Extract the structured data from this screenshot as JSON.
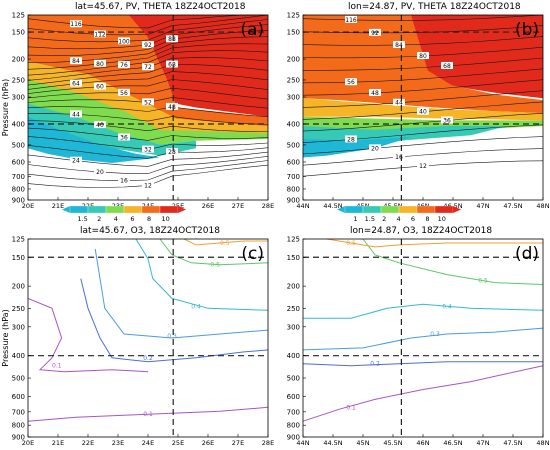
{
  "chart_data": [
    {
      "id": "a",
      "type": "contour",
      "panel_label": "(a)",
      "title": "lat=45.67, PV, THETA 18Z24OCT2018",
      "ylabel": "Pressure (hPa)",
      "y_ticks": [
        125,
        150,
        200,
        250,
        300,
        400,
        500,
        600,
        700,
        800,
        900
      ],
      "x_ticks": [
        "20E",
        "21E",
        "22E",
        "23E",
        "24E",
        "25E",
        "26E",
        "27E",
        "28E"
      ],
      "fill_field": "PV",
      "colorbar_levels": [
        "1.5",
        "2",
        "4",
        "6",
        "8",
        "10"
      ],
      "colorbar_colors": [
        "#1fb7d6",
        "#36c9b6",
        "#7fdc4f",
        "#f6b526",
        "#f36a1b",
        "#e12a1c"
      ],
      "reference_lines": {
        "vertical": "25E",
        "horizontal_pressure": [
          150,
          400
        ]
      },
      "theta_labels": [
        "116",
        "112",
        "100",
        "92",
        "88",
        "84",
        "80",
        "76",
        "72",
        "68",
        "64",
        "60",
        "56",
        "52",
        "48",
        "44",
        "40",
        "36",
        "32",
        "28",
        "24",
        "20",
        "16",
        "12"
      ]
    },
    {
      "id": "b",
      "type": "contour",
      "panel_label": "(b)",
      "title": "lon=24.87, PV, THETA 18Z24OCT2018",
      "ylabel": "",
      "y_ticks": [
        125,
        150,
        200,
        250,
        300,
        400,
        500,
        600,
        700,
        800,
        900
      ],
      "x_ticks": [
        "44N",
        "44.5N",
        "45N",
        "45.5N",
        "46N",
        "46.5N",
        "47N",
        "47.5N",
        "48N"
      ],
      "fill_field": "PV",
      "colorbar_levels": [
        "1",
        "1.5",
        "2",
        "4",
        "6",
        "8",
        "10"
      ],
      "colorbar_colors": [
        "#1fb7d6",
        "#36c9b6",
        "#7fdc4f",
        "#f6b526",
        "#f36a1b",
        "#e12a1c"
      ],
      "reference_lines": {
        "vertical": "45.67N",
        "horizontal_pressure": [
          150,
          400
        ]
      },
      "theta_labels": [
        "116",
        "92",
        "84",
        "80",
        "68",
        "56",
        "48",
        "44",
        "40",
        "36",
        "28",
        "20",
        "16",
        "12"
      ]
    },
    {
      "id": "c",
      "type": "contour",
      "panel_label": "(c)",
      "title": "lat=45.67, O3, 18Z24OCT2018",
      "ylabel": "Pressure (hPa)",
      "y_ticks": [
        125,
        150,
        200,
        250,
        300,
        400,
        500,
        600,
        700,
        800,
        900
      ],
      "x_ticks": [
        "20E",
        "21E",
        "22E",
        "23E",
        "24E",
        "25E",
        "26E",
        "27E",
        "28E"
      ],
      "contour_levels": [
        "0.1",
        "0.2",
        "0.3",
        "0.4",
        "0.5"
      ],
      "reference_lines": {
        "vertical": "25E",
        "horizontal_pressure": [
          150,
          400
        ]
      }
    },
    {
      "id": "d",
      "type": "contour",
      "panel_label": "(d)",
      "title": "lon=24.87, O3, 18Z24OCT2018",
      "ylabel": "",
      "y_ticks": [
        125,
        150,
        200,
        250,
        300,
        400,
        500,
        600,
        700,
        800,
        900
      ],
      "x_ticks": [
        "44N",
        "44.5N",
        "45N",
        "45.5N",
        "46N",
        "46.5N",
        "47N",
        "47.5N",
        "48N"
      ],
      "contour_levels": [
        "0.1",
        "0.2",
        "0.3",
        "0.4",
        "0.5"
      ],
      "reference_lines": {
        "vertical": "45.67N",
        "horizontal_pressure": [
          150,
          400
        ]
      }
    }
  ]
}
